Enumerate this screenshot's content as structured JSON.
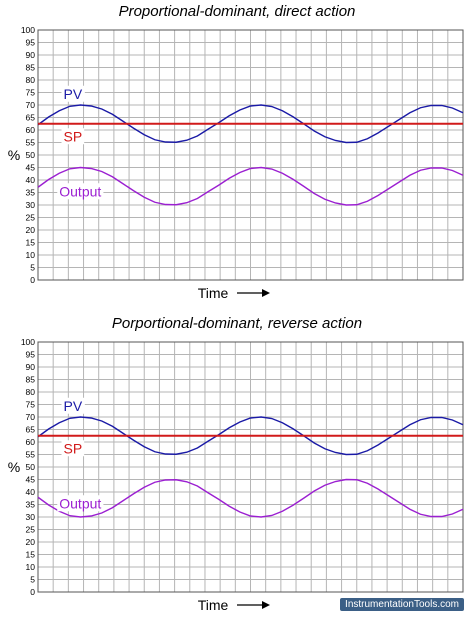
{
  "chart_data": [
    {
      "type": "line",
      "title": "Proportional-dominant, direct action",
      "xlabel": "Time",
      "ylabel": "%",
      "ylim": [
        0,
        100
      ],
      "y_ticks": [
        "0",
        "5",
        "10",
        "15",
        "20",
        "25",
        "30",
        "35",
        "40",
        "45",
        "50",
        "55",
        "60",
        "65",
        "70",
        "75",
        "80",
        "85",
        "90",
        "95",
        "100"
      ],
      "grid": true,
      "x": [
        0,
        0.025,
        0.05,
        0.075,
        0.1,
        0.125,
        0.15,
        0.175,
        0.2,
        0.225,
        0.25,
        0.275,
        0.3,
        0.325,
        0.35,
        0.375,
        0.4,
        0.425,
        0.45,
        0.475,
        0.5,
        0.525,
        0.55,
        0.575,
        0.6,
        0.625,
        0.65,
        0.675,
        0.7,
        0.725,
        0.75,
        0.775,
        0.8,
        0.825,
        0.85,
        0.875,
        0.9,
        0.925,
        0.95,
        0.975,
        1.0
      ],
      "series": [
        {
          "name": "PV",
          "color": "#1a1aa6",
          "values": [
            62.1,
            65.2,
            67.7,
            69.5,
            70.0,
            69.6,
            68.4,
            66.3,
            63.5,
            60.7,
            58.1,
            56.1,
            55.2,
            55.1,
            55.9,
            57.6,
            60.3,
            62.9,
            65.7,
            68.0,
            69.6,
            70.0,
            69.4,
            67.7,
            65.3,
            62.5,
            59.6,
            57.3,
            55.8,
            55.0,
            55.1,
            56.5,
            58.8,
            61.5,
            64.2,
            66.9,
            68.9,
            69.8,
            69.8,
            68.8,
            66.9
          ]
        },
        {
          "name": "SP",
          "color": "#d11a1a",
          "values": [
            62.5,
            62.5,
            62.5,
            62.5,
            62.5,
            62.5,
            62.5,
            62.5,
            62.5,
            62.5,
            62.5,
            62.5,
            62.5,
            62.5,
            62.5,
            62.5,
            62.5,
            62.5,
            62.5,
            62.5,
            62.5,
            62.5,
            62.5,
            62.5,
            62.5,
            62.5,
            62.5,
            62.5,
            62.5,
            62.5,
            62.5,
            62.5,
            62.5,
            62.5,
            62.5,
            62.5,
            62.5,
            62.5,
            62.5,
            62.5,
            62.5
          ]
        },
        {
          "name": "Output",
          "color": "#9b1fd1",
          "values": [
            37.1,
            40.2,
            42.7,
            44.5,
            45.0,
            44.6,
            43.4,
            41.3,
            38.5,
            35.7,
            33.1,
            31.1,
            30.2,
            30.1,
            30.9,
            32.6,
            35.3,
            37.9,
            40.7,
            43.0,
            44.6,
            45.0,
            44.4,
            42.7,
            40.3,
            37.5,
            34.6,
            32.3,
            30.8,
            30.0,
            30.1,
            31.5,
            33.8,
            36.5,
            39.2,
            41.9,
            43.9,
            44.8,
            44.8,
            43.8,
            41.9
          ]
        }
      ],
      "colors": {
        "PV": "#1a1aa6",
        "SP": "#d11a1a",
        "Output": "#9b1fd1"
      }
    },
    {
      "type": "line",
      "title": "Porportional-dominant, reverse action",
      "xlabel": "Time",
      "ylabel": "%",
      "ylim": [
        0,
        100
      ],
      "y_ticks": [
        "0",
        "5",
        "10",
        "15",
        "20",
        "25",
        "30",
        "35",
        "40",
        "45",
        "50",
        "55",
        "60",
        "65",
        "70",
        "75",
        "80",
        "85",
        "90",
        "95",
        "100"
      ],
      "grid": true,
      "x": [
        0,
        0.025,
        0.05,
        0.075,
        0.1,
        0.125,
        0.15,
        0.175,
        0.2,
        0.225,
        0.25,
        0.275,
        0.3,
        0.325,
        0.35,
        0.375,
        0.4,
        0.425,
        0.45,
        0.475,
        0.5,
        0.525,
        0.55,
        0.575,
        0.6,
        0.625,
        0.65,
        0.675,
        0.7,
        0.725,
        0.75,
        0.775,
        0.8,
        0.825,
        0.85,
        0.875,
        0.9,
        0.925,
        0.95,
        0.975,
        1.0
      ],
      "series": [
        {
          "name": "PV",
          "color": "#1a1aa6",
          "values": [
            62.1,
            65.2,
            67.7,
            69.5,
            70.0,
            69.6,
            68.4,
            66.3,
            63.5,
            60.7,
            58.1,
            56.1,
            55.2,
            55.1,
            55.9,
            57.6,
            60.3,
            62.9,
            65.7,
            68.0,
            69.6,
            70.0,
            69.4,
            67.7,
            65.3,
            62.5,
            59.6,
            57.3,
            55.8,
            55.0,
            55.1,
            56.5,
            58.8,
            61.5,
            64.2,
            66.9,
            68.9,
            69.8,
            69.8,
            68.8,
            66.9
          ]
        },
        {
          "name": "SP",
          "color": "#d11a1a",
          "values": [
            62.5,
            62.5,
            62.5,
            62.5,
            62.5,
            62.5,
            62.5,
            62.5,
            62.5,
            62.5,
            62.5,
            62.5,
            62.5,
            62.5,
            62.5,
            62.5,
            62.5,
            62.5,
            62.5,
            62.5,
            62.5,
            62.5,
            62.5,
            62.5,
            62.5,
            62.5,
            62.5,
            62.5,
            62.5,
            62.5,
            62.5,
            62.5,
            62.5,
            62.5,
            62.5,
            62.5,
            62.5,
            62.5,
            62.5,
            62.5,
            62.5
          ]
        },
        {
          "name": "Output",
          "color": "#9b1fd1",
          "values": [
            37.9,
            34.8,
            32.3,
            30.5,
            30.0,
            30.4,
            31.6,
            33.7,
            36.5,
            39.3,
            41.9,
            43.9,
            44.8,
            44.9,
            44.1,
            42.4,
            39.7,
            37.1,
            34.3,
            32.0,
            30.4,
            30.0,
            30.6,
            32.3,
            34.7,
            37.5,
            40.4,
            42.7,
            44.2,
            45.0,
            44.9,
            43.5,
            41.2,
            38.5,
            35.8,
            33.1,
            31.1,
            30.2,
            30.2,
            31.2,
            33.1
          ]
        }
      ],
      "colors": {
        "PV": "#1a1aa6",
        "SP": "#d11a1a",
        "Output": "#9b1fd1"
      }
    }
  ],
  "footer": {
    "watermark": "InstrumentationTools.com"
  }
}
